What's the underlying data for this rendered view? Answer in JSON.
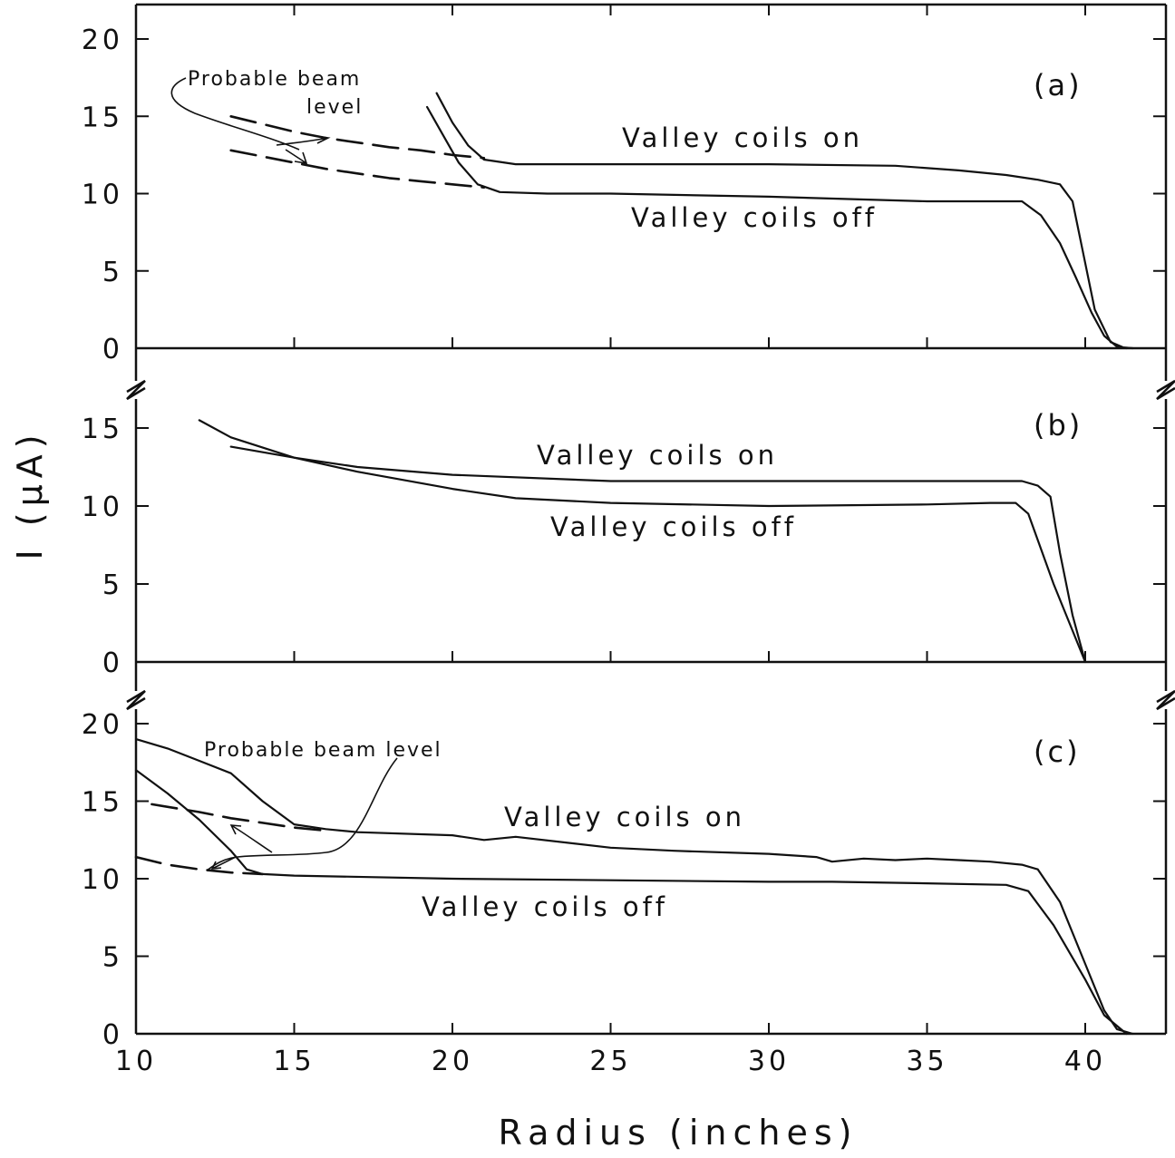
{
  "chart_data": {
    "type": "line",
    "x_axis": {
      "label": "Radius (inches)",
      "ticks": [
        10,
        15,
        20,
        25,
        30,
        35,
        40
      ],
      "range": [
        10,
        43
      ]
    },
    "y_axis": {
      "label": "I (μA)"
    },
    "panels": [
      {
        "id": "a",
        "label": "(a)",
        "ylim": [
          0,
          22
        ],
        "yticks": [
          0,
          5,
          10,
          15,
          20
        ],
        "series": [
          {
            "name": "Valley coils on",
            "style": "solid",
            "x": [
              19.5,
              20,
              20.5,
              21,
              22,
              25,
              30,
              34,
              36,
              37.5,
              38.5,
              39.2,
              39.6,
              39.9,
              40.3,
              40.8,
              41.2,
              41.5
            ],
            "y": [
              16.5,
              14.6,
              13.1,
              12.2,
              11.9,
              11.9,
              11.9,
              11.8,
              11.5,
              11.2,
              10.9,
              10.6,
              9.5,
              6.5,
              2.5,
              0.4,
              0.05,
              0
            ]
          },
          {
            "name": "Valley coils off",
            "style": "solid",
            "x": [
              19.2,
              19.7,
              20.2,
              20.8,
              21.5,
              23,
              25,
              30,
              35,
              38,
              38.6,
              39.2,
              39.7,
              40.2,
              40.6,
              41,
              41.3
            ],
            "y": [
              15.6,
              13.8,
              12.0,
              10.6,
              10.1,
              10.0,
              10.0,
              9.8,
              9.5,
              9.5,
              8.6,
              6.8,
              4.6,
              2.3,
              0.8,
              0.1,
              0
            ]
          },
          {
            "name": "",
            "style": "dashed",
            "x": [
              13,
              14,
              15,
              16,
              17,
              18,
              19,
              20,
              21
            ],
            "y": [
              15.0,
              14.5,
              14.0,
              13.6,
              13.3,
              13.0,
              12.8,
              12.5,
              12.3
            ]
          },
          {
            "name": "",
            "style": "dashed",
            "x": [
              13,
              14,
              15,
              16,
              17,
              18,
              19,
              20,
              21
            ],
            "y": [
              12.8,
              12.4,
              12.0,
              11.6,
              11.3,
              11.0,
              10.8,
              10.6,
              10.4
            ]
          }
        ],
        "labels": {
          "on": "Valley coils on",
          "off": "Valley coils off"
        },
        "annotation": {
          "line1": "Probable beam",
          "line2": "level"
        }
      },
      {
        "id": "b",
        "label": "(b)",
        "ylim": [
          0,
          17.5
        ],
        "yticks": [
          0,
          5,
          10,
          15
        ],
        "series": [
          {
            "name": "Valley coils on",
            "style": "solid",
            "x": [
              13,
              15,
              17,
              20,
              25,
              30,
              35,
              38,
              38.5,
              38.9,
              39.2,
              39.6,
              40
            ],
            "y": [
              13.8,
              13.1,
              12.5,
              12.0,
              11.6,
              11.6,
              11.6,
              11.6,
              11.3,
              10.6,
              7.0,
              3.0,
              0
            ]
          },
          {
            "name": "Valley coils off",
            "style": "solid",
            "x": [
              12,
              13,
              15,
              17,
              20,
              22,
              25,
              30,
              35,
              37,
              37.8,
              38.2,
              39,
              40
            ],
            "y": [
              15.5,
              14.4,
              13.1,
              12.2,
              11.1,
              10.5,
              10.2,
              10.0,
              10.1,
              10.2,
              10.2,
              9.5,
              5.0,
              0
            ]
          }
        ],
        "labels": {
          "on": "Valley coils on",
          "off": "Valley coils off"
        }
      },
      {
        "id": "c",
        "label": "(c)",
        "ylim": [
          0,
          22
        ],
        "yticks": [
          0,
          5,
          10,
          15,
          20
        ],
        "series": [
          {
            "name": "Valley coils on",
            "style": "solid",
            "x": [
              10,
              11,
              12,
              13,
              14,
              15,
              16,
              17,
              20,
              21,
              22,
              25,
              27,
              30,
              31.5,
              32,
              33,
              34,
              35,
              36,
              37,
              38,
              38.5,
              39.2,
              40,
              40.6,
              41,
              41.5
            ],
            "y": [
              19.0,
              18.4,
              17.6,
              16.8,
              15.0,
              13.5,
              13.2,
              13.0,
              12.8,
              12.5,
              12.7,
              12.0,
              11.8,
              11.6,
              11.4,
              11.1,
              11.3,
              11.2,
              11.3,
              11.2,
              11.1,
              10.9,
              10.6,
              8.5,
              4.5,
              1.5,
              0.3,
              0
            ]
          },
          {
            "name": "Valley coils off",
            "style": "solid",
            "x": [
              10,
              11,
              12,
              13,
              13.5,
              14,
              15,
              20,
              25,
              30,
              32,
              35,
              37.5,
              38.2,
              39,
              40,
              40.6,
              41.3
            ],
            "y": [
              17.0,
              15.5,
              13.8,
              11.8,
              10.6,
              10.3,
              10.2,
              10.0,
              9.9,
              9.8,
              9.8,
              9.7,
              9.6,
              9.2,
              7.0,
              3.5,
              1.2,
              0
            ]
          },
          {
            "name": "",
            "style": "dashed",
            "x": [
              10.5,
              12,
              13,
              14,
              15,
              16
            ],
            "y": [
              14.8,
              14.3,
              13.9,
              13.6,
              13.3,
              13.1
            ]
          },
          {
            "name": "",
            "style": "dashed",
            "x": [
              10,
              11,
              12,
              13,
              14
            ],
            "y": [
              11.4,
              10.9,
              10.6,
              10.4,
              10.3
            ]
          }
        ],
        "labels": {
          "on": "Valley coils on",
          "off": "Valley coils off"
        },
        "annotation": {
          "line1": "Probable beam level"
        }
      }
    ]
  }
}
